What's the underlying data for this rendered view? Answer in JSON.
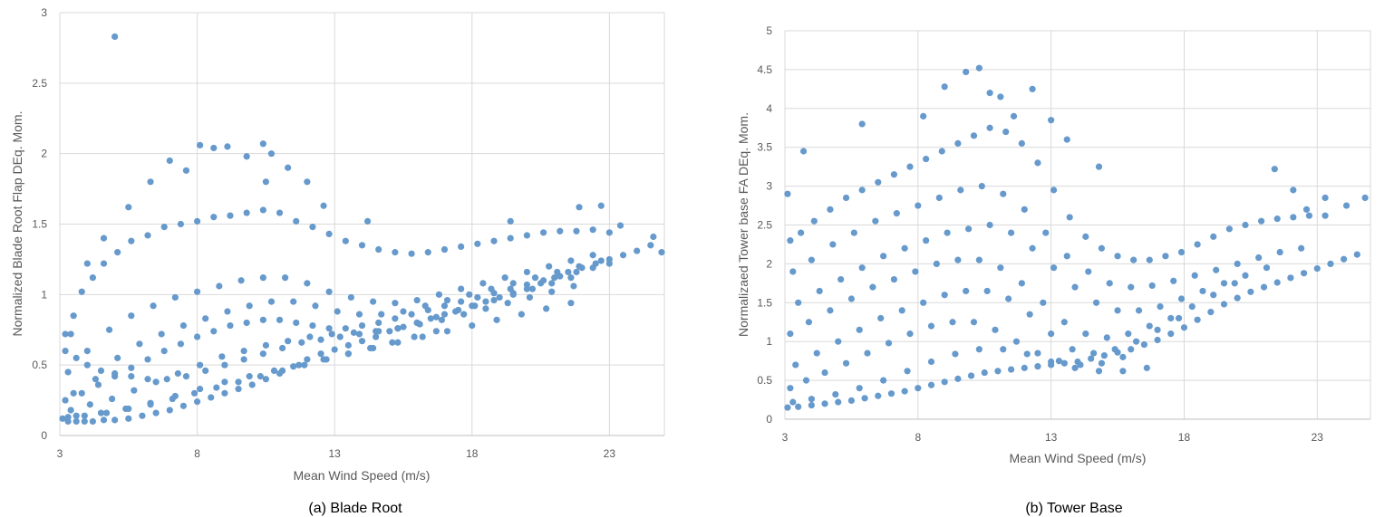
{
  "chart_data": [
    {
      "type": "scatter",
      "caption": "(a)  Blade Root",
      "title": "",
      "xlabel": "Mean Wind Speed (m/s)",
      "ylabel": "Normalized Blade Root Flap DEq. Mom.",
      "xlim": [
        3,
        25
      ],
      "ylim": [
        0,
        3
      ],
      "xticks": [
        3,
        8,
        13,
        18,
        23
      ],
      "yticks": [
        0,
        0.5,
        1,
        1.5,
        2,
        2.5,
        3
      ],
      "xtick_labels": [
        "3",
        "8",
        "13",
        "18",
        "23"
      ],
      "ytick_labels": [
        "0",
        "0.5",
        "1",
        "1.5",
        "2",
        "2.5",
        "3"
      ],
      "grid": true,
      "legend": "none",
      "marker_color": "#6699cc",
      "series": [
        {
          "x": [
            3.1,
            3.3,
            3.6,
            3.9,
            4.2,
            4.6,
            5.0,
            5.5,
            6.0,
            6.5,
            7.0,
            7.5,
            8.0,
            8.5,
            9.0,
            9.5,
            10.0,
            10.5,
            11.0,
            11.5,
            12.0,
            12.5,
            13.0,
            13.5,
            14.0,
            14.5,
            15.0,
            15.5,
            16.0,
            16.5,
            17.0,
            17.5,
            18.0,
            18.5,
            19.0,
            19.5,
            20.0,
            20.5,
            21.0,
            21.5,
            22.0,
            22.5,
            23.0,
            23.5,
            24.0,
            24.5,
            4.0,
            4.6,
            5.5,
            6.3,
            7.0,
            7.6,
            8.1,
            8.6,
            9.1,
            9.8,
            10.4,
            10.7,
            11.3,
            12.0,
            12.6,
            5.0,
            19.4,
            21.9,
            22.7,
            23.4,
            24.6,
            24.9,
            3.4,
            14.2,
            10.5,
            3.2,
            3.5,
            3.8,
            4.2,
            4.6,
            5.1,
            5.6,
            6.2,
            6.8,
            7.4,
            8.0,
            8.6,
            9.2,
            9.8,
            10.4,
            11.0,
            11.6,
            12.2,
            12.8,
            13.4,
            14.0,
            14.6,
            15.2,
            15.8,
            16.4,
            17.0,
            17.6,
            18.2,
            18.8,
            19.4,
            20.0,
            20.6,
            21.2,
            21.8,
            22.4,
            23.0,
            3.3,
            4.0,
            4.8,
            5.6,
            6.4,
            7.2,
            8.0,
            8.8,
            9.6,
            10.4,
            11.2,
            12.0,
            12.8,
            13.6,
            14.4,
            15.2,
            16.0,
            16.8,
            17.6,
            18.4,
            19.2,
            20.0,
            20.8,
            21.6,
            22.4,
            3.5,
            4.3,
            5.1,
            5.9,
            6.7,
            7.5,
            8.3,
            9.1,
            9.9,
            10.7,
            11.5,
            12.3,
            13.1,
            13.9,
            14.7,
            15.5,
            16.3,
            17.1,
            17.9,
            18.7,
            19.5,
            20.3,
            21.1,
            21.9,
            22.7,
            3.2,
            3.8,
            4.4,
            5.0,
            5.6,
            6.2,
            6.8,
            7.4,
            8.0,
            8.6,
            9.2,
            9.8,
            10.4,
            11.0,
            11.6,
            12.2,
            12.8,
            13.4,
            14.0,
            14.6,
            15.2,
            15.8,
            16.4,
            17.0,
            17.6,
            18.2,
            18.8,
            19.4,
            20.0,
            20.6,
            21.2,
            21.8,
            22.4,
            23.0,
            3.4,
            4.1,
            4.9,
            5.7,
            6.5,
            7.3,
            8.1,
            8.9,
            9.7,
            10.5,
            11.3,
            12.1,
            12.9,
            13.7,
            14.5,
            15.3,
            16.1,
            16.9,
            17.7,
            18.5,
            19.3,
            20.1,
            20.9,
            21.7,
            3.6,
            4.5,
            5.4,
            6.3,
            7.2,
            8.1,
            9.0,
            9.9,
            10.8,
            11.7,
            12.6,
            13.5,
            14.4,
            15.3,
            16.2,
            17.1,
            18.0,
            18.9,
            19.8,
            20.7,
            21.6,
            3.3,
            3.9,
            4.7,
            5.5,
            6.3,
            7.1,
            7.9,
            8.7,
            9.5,
            10.3,
            11.1,
            11.9,
            12.7,
            13.5,
            14.3,
            15.1,
            15.9,
            16.7,
            3.2,
            3.6,
            4.0,
            4.5,
            5.0,
            5.6,
            6.2,
            6.9,
            7.6,
            8.3,
            9.0,
            9.7,
            10.4,
            11.1,
            11.8,
            12.5,
            13.2,
            13.9,
            14.6,
            15.3,
            16.0,
            16.7,
            17.4,
            18.1,
            18.8,
            19.5,
            20.2,
            20.9,
            21.6
          ],
          "y": [
            0.12,
            0.1,
            0.1,
            0.1,
            0.1,
            0.11,
            0.11,
            0.12,
            0.14,
            0.16,
            0.18,
            0.21,
            0.24,
            0.27,
            0.3,
            0.33,
            0.36,
            0.4,
            0.44,
            0.49,
            0.54,
            0.58,
            0.61,
            0.64,
            0.67,
            0.7,
            0.74,
            0.77,
            0.8,
            0.83,
            0.86,
            0.89,
            0.92,
            0.95,
            0.98,
            1.01,
            1.04,
            1.08,
            1.12,
            1.16,
            1.19,
            1.22,
            1.25,
            1.28,
            1.31,
            1.35,
            1.22,
            1.4,
            1.62,
            1.8,
            1.95,
            1.88,
            2.06,
            2.04,
            2.05,
            1.98,
            2.07,
            2.0,
            1.9,
            1.8,
            1.63,
            2.83,
            1.52,
            1.62,
            1.63,
            1.49,
            1.41,
            1.3,
            0.72,
            1.52,
            1.8,
            0.72,
            0.85,
            1.02,
            1.12,
            1.22,
            1.3,
            1.38,
            1.42,
            1.48,
            1.5,
            1.52,
            1.55,
            1.56,
            1.58,
            1.6,
            1.58,
            1.52,
            1.48,
            1.43,
            1.38,
            1.35,
            1.32,
            1.3,
            1.29,
            1.3,
            1.32,
            1.34,
            1.36,
            1.38,
            1.4,
            1.42,
            1.44,
            1.45,
            1.45,
            1.46,
            1.44,
            0.45,
            0.6,
            0.75,
            0.85,
            0.92,
            0.98,
            1.02,
            1.06,
            1.1,
            1.12,
            1.12,
            1.08,
            1.02,
            0.98,
            0.95,
            0.94,
            0.96,
            1.0,
            1.04,
            1.08,
            1.12,
            1.16,
            1.2,
            1.24,
            1.28,
            0.3,
            0.4,
            0.55,
            0.65,
            0.72,
            0.78,
            0.83,
            0.88,
            0.92,
            0.95,
            0.95,
            0.92,
            0.88,
            0.86,
            0.86,
            0.88,
            0.92,
            0.96,
            1.0,
            1.04,
            1.08,
            1.12,
            1.16,
            1.2,
            1.24,
            0.25,
            0.3,
            0.36,
            0.42,
            0.48,
            0.54,
            0.6,
            0.65,
            0.7,
            0.74,
            0.78,
            0.8,
            0.82,
            0.82,
            0.8,
            0.78,
            0.76,
            0.76,
            0.78,
            0.8,
            0.83,
            0.86,
            0.89,
            0.92,
            0.95,
            0.98,
            1.01,
            1.04,
            1.07,
            1.1,
            1.13,
            1.16,
            1.19,
            1.22,
            0.18,
            0.22,
            0.26,
            0.32,
            0.38,
            0.44,
            0.5,
            0.56,
            0.6,
            0.64,
            0.67,
            0.7,
            0.72,
            0.73,
            0.74,
            0.76,
            0.79,
            0.82,
            0.86,
            0.9,
            0.94,
            0.98,
            1.02,
            1.06,
            0.14,
            0.16,
            0.19,
            0.23,
            0.28,
            0.33,
            0.38,
            0.42,
            0.46,
            0.5,
            0.54,
            0.58,
            0.62,
            0.66,
            0.7,
            0.74,
            0.78,
            0.82,
            0.86,
            0.9,
            0.94,
            0.13,
            0.14,
            0.16,
            0.19,
            0.22,
            0.26,
            0.3,
            0.34,
            0.38,
            0.42,
            0.46,
            0.5,
            0.54,
            0.58,
            0.62,
            0.66,
            0.7,
            0.74,
            0.6,
            0.55,
            0.5,
            0.46,
            0.44,
            0.42,
            0.4,
            0.4,
            0.42,
            0.46,
            0.5,
            0.54,
            0.58,
            0.62,
            0.66,
            0.68,
            0.7,
            0.72,
            0.74,
            0.76,
            0.8,
            0.84,
            0.88,
            0.92,
            0.96,
            1.0,
            1.04,
            1.08,
            1.12
          ]
        }
      ]
    },
    {
      "type": "scatter",
      "caption": "(b) Tower Base",
      "title": "",
      "xlabel": "Mean Wind Speed (m/s)",
      "ylabel": "Normalizaed Tower base FA DEq. Mom.",
      "xlim": [
        3,
        25
      ],
      "ylim": [
        0,
        5
      ],
      "xticks": [
        3,
        8,
        13,
        18,
        23
      ],
      "yticks": [
        0,
        0.5,
        1,
        1.5,
        2,
        2.5,
        3,
        3.5,
        4,
        4.5,
        5
      ],
      "xtick_labels": [
        "3",
        "8",
        "13",
        "18",
        "23"
      ],
      "ytick_labels": [
        "0",
        "0.5",
        "1",
        "1.5",
        "2",
        "2.5",
        "3",
        "3.5",
        "4",
        "4.5",
        "5"
      ],
      "grid": true,
      "legend": "none",
      "marker_color": "#6699cc",
      "series": [
        {
          "x": [
            3.1,
            3.5,
            4.0,
            4.5,
            5.0,
            5.5,
            6.0,
            6.5,
            7.0,
            7.5,
            8.0,
            8.5,
            9.0,
            9.5,
            10.0,
            10.5,
            11.0,
            11.5,
            12.0,
            12.5,
            13.0,
            13.5,
            14.0,
            14.5,
            15.0,
            15.5,
            16.0,
            16.5,
            17.0,
            17.5,
            18.0,
            18.5,
            19.0,
            19.5,
            20.0,
            20.5,
            21.0,
            21.5,
            22.0,
            22.5,
            23.0,
            23.5,
            24.0,
            24.5,
            3.7,
            5.9,
            8.2,
            9.0,
            9.8,
            10.3,
            10.7,
            11.1,
            11.6,
            12.3,
            13.0,
            13.6,
            14.8,
            21.4,
            22.1,
            22.6,
            23.3,
            24.1,
            24.8,
            3.1,
            3.2,
            3.6,
            4.1,
            4.7,
            5.3,
            5.9,
            6.5,
            7.1,
            7.7,
            8.3,
            8.9,
            9.5,
            10.1,
            10.7,
            11.3,
            11.9,
            12.5,
            13.1,
            13.7,
            14.3,
            14.9,
            15.5,
            16.1,
            16.7,
            17.3,
            17.9,
            18.5,
            19.1,
            19.7,
            20.3,
            20.9,
            21.5,
            22.1,
            22.7,
            23.3,
            3.3,
            4.0,
            4.8,
            5.6,
            6.4,
            7.2,
            8.0,
            8.8,
            9.6,
            10.4,
            11.2,
            12.0,
            12.8,
            13.6,
            14.4,
            15.2,
            16.0,
            16.8,
            17.6,
            18.4,
            19.2,
            20.0,
            20.8,
            21.6,
            22.4,
            3.5,
            4.3,
            5.1,
            5.9,
            6.7,
            7.5,
            8.3,
            9.1,
            9.9,
            10.7,
            11.5,
            12.3,
            13.1,
            13.9,
            14.7,
            15.5,
            16.3,
            17.1,
            17.9,
            18.7,
            19.5,
            20.3,
            21.1,
            3.2,
            3.9,
            4.7,
            5.5,
            6.3,
            7.1,
            7.9,
            8.7,
            9.5,
            10.3,
            11.1,
            11.9,
            12.7,
            13.5,
            14.3,
            15.1,
            15.9,
            16.7,
            17.5,
            18.3,
            19.1,
            19.9,
            3.4,
            4.2,
            5.0,
            5.8,
            6.6,
            7.4,
            8.2,
            9.0,
            9.8,
            10.6,
            11.4,
            12.2,
            13.0,
            13.8,
            14.6,
            15.4,
            16.2,
            17.0,
            17.8,
            3.2,
            3.8,
            4.5,
            5.3,
            6.1,
            6.9,
            7.7,
            8.5,
            9.3,
            10.1,
            10.9,
            11.7,
            12.5,
            13.3,
            14.1,
            14.9,
            15.7,
            3.3,
            4.0,
            4.9,
            5.8,
            6.7,
            7.6,
            8.5,
            9.4,
            10.3,
            11.2,
            12.1,
            13.0,
            13.9,
            14.8,
            15.7,
            16.6
          ],
          "y": [
            0.15,
            0.16,
            0.18,
            0.2,
            0.22,
            0.24,
            0.27,
            0.3,
            0.33,
            0.36,
            0.4,
            0.44,
            0.48,
            0.52,
            0.56,
            0.6,
            0.62,
            0.64,
            0.66,
            0.68,
            0.7,
            0.72,
            0.74,
            0.78,
            0.82,
            0.86,
            0.9,
            0.96,
            1.02,
            1.1,
            1.18,
            1.28,
            1.38,
            1.48,
            1.56,
            1.64,
            1.7,
            1.76,
            1.82,
            1.88,
            1.94,
            2.0,
            2.06,
            2.12,
            3.45,
            3.8,
            3.9,
            4.28,
            4.47,
            4.52,
            4.2,
            4.15,
            3.9,
            4.25,
            3.85,
            3.6,
            3.25,
            3.22,
            2.95,
            2.7,
            2.85,
            2.75,
            2.85,
            2.9,
            2.3,
            2.4,
            2.55,
            2.7,
            2.85,
            2.95,
            3.05,
            3.15,
            3.25,
            3.35,
            3.45,
            3.55,
            3.65,
            3.75,
            3.7,
            3.55,
            3.3,
            2.95,
            2.6,
            2.35,
            2.2,
            2.1,
            2.05,
            2.05,
            2.1,
            2.15,
            2.25,
            2.35,
            2.45,
            2.5,
            2.55,
            2.58,
            2.6,
            2.62,
            2.62,
            1.9,
            2.05,
            2.25,
            2.4,
            2.55,
            2.65,
            2.75,
            2.85,
            2.95,
            3.0,
            2.9,
            2.7,
            2.4,
            2.1,
            1.9,
            1.75,
            1.7,
            1.72,
            1.78,
            1.85,
            1.92,
            2.0,
            2.08,
            2.15,
            2.2,
            1.5,
            1.65,
            1.8,
            1.95,
            2.1,
            2.2,
            2.3,
            2.4,
            2.45,
            2.5,
            2.4,
            2.2,
            1.95,
            1.7,
            1.5,
            1.4,
            1.4,
            1.45,
            1.55,
            1.65,
            1.75,
            1.85,
            1.95,
            1.1,
            1.25,
            1.4,
            1.55,
            1.7,
            1.8,
            1.9,
            2.0,
            2.05,
            2.05,
            1.95,
            1.75,
            1.5,
            1.25,
            1.1,
            1.05,
            1.1,
            1.2,
            1.3,
            1.45,
            1.6,
            1.75,
            0.7,
            0.85,
            1.0,
            1.15,
            1.3,
            1.4,
            1.5,
            1.6,
            1.65,
            1.65,
            1.55,
            1.35,
            1.1,
            0.9,
            0.85,
            0.9,
            1.0,
            1.15,
            1.3,
            0.4,
            0.5,
            0.6,
            0.72,
            0.85,
            0.98,
            1.1,
            1.2,
            1.25,
            1.25,
            1.15,
            1.0,
            0.85,
            0.75,
            0.7,
            0.72,
            0.8,
            0.22,
            0.26,
            0.32,
            0.4,
            0.5,
            0.62,
            0.74,
            0.84,
            0.9,
            0.9,
            0.84,
            0.74,
            0.66,
            0.62,
            0.62,
            0.66
          ]
        }
      ]
    }
  ]
}
